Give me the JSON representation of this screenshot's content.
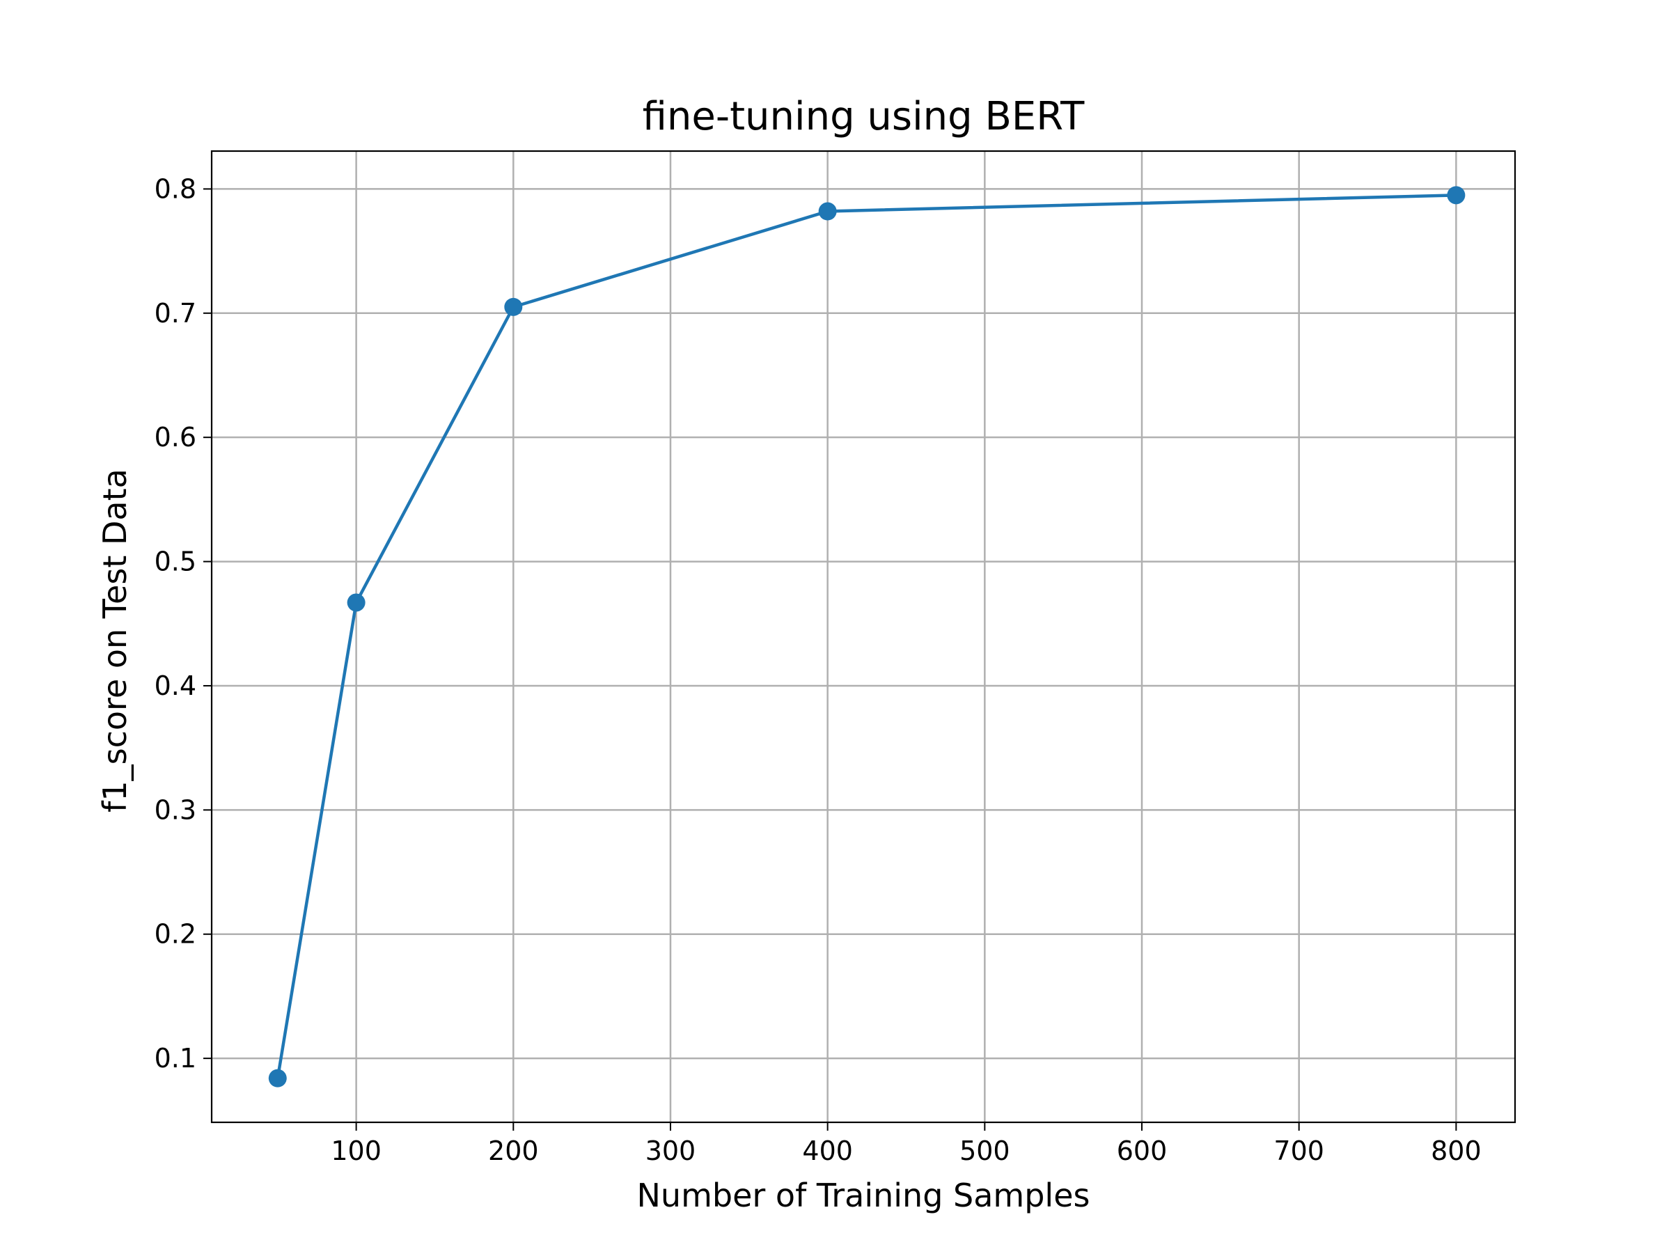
{
  "chart_data": {
    "type": "line",
    "title": "fine-tuning using BERT",
    "xlabel": "Number of Training Samples",
    "ylabel": "f1_score on Test Data",
    "xlim": [
      8,
      837.5
    ],
    "ylim": [
      0.0485,
      0.8305
    ],
    "xticks": [
      100,
      200,
      300,
      400,
      500,
      600,
      700,
      800
    ],
    "xtick_labels": [
      "100",
      "200",
      "300",
      "400",
      "500",
      "600",
      "700",
      "800"
    ],
    "yticks": [
      0.1,
      0.2,
      0.3,
      0.4,
      0.5,
      0.6,
      0.7,
      0.8
    ],
    "ytick_labels": [
      "0.1",
      "0.2",
      "0.3",
      "0.4",
      "0.5",
      "0.6",
      "0.7",
      "0.8"
    ],
    "grid": true,
    "series": [
      {
        "x": [
          50,
          100,
          200,
          400,
          800
        ],
        "values": [
          0.084,
          0.467,
          0.705,
          0.782,
          0.795
        ],
        "color": "#1f77b4",
        "marker": "circle"
      }
    ],
    "colors": {
      "line": "#1f77b4",
      "grid": "#b0b0b0",
      "axes": "#000000"
    }
  }
}
